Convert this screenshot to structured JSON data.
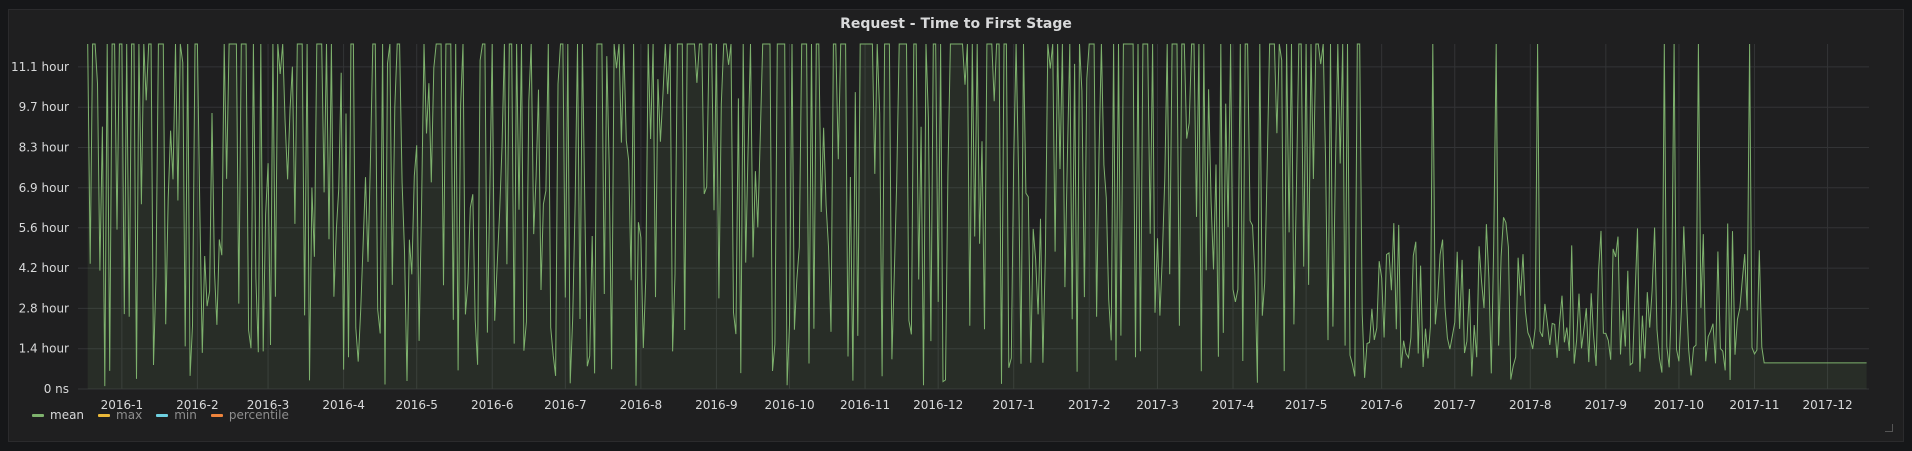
{
  "panel": {
    "title": "Request - Time to First Stage"
  },
  "colors": {
    "background": "#1f1f20",
    "grid": "#333436",
    "tick_text": "#d8d9da",
    "mean": "#7eb26d",
    "max": "#eab839",
    "min": "#6ed0e0",
    "percentile": "#ef843c"
  },
  "chart_data": {
    "type": "line",
    "title": "Request - Time to First Stage",
    "xlabel": "",
    "ylabel": "",
    "y_ticks": [
      "0 ns",
      "1.4 hour",
      "2.8 hour",
      "4.2 hour",
      "5.6 hour",
      "6.9 hour",
      "8.3 hour",
      "9.7 hour",
      "11.1 hour"
    ],
    "y_tick_values_hours": [
      0,
      1.39,
      2.78,
      4.17,
      5.56,
      6.94,
      8.33,
      9.72,
      11.11
    ],
    "ylim_hours": [
      0,
      11.9
    ],
    "x_ticks": [
      "2016-1",
      "2016-2",
      "2016-3",
      "2016-4",
      "2016-5",
      "2016-6",
      "2016-7",
      "2016-8",
      "2016-9",
      "2016-10",
      "2016-11",
      "2016-12",
      "2017-1",
      "2017-2",
      "2017-3",
      "2017-4",
      "2017-5",
      "2017-6",
      "2017-7",
      "2017-8",
      "2017-9",
      "2017-10",
      "2017-11",
      "2017-12"
    ],
    "xlim": [
      "2015-12-14",
      "2017-12-18"
    ],
    "grid": true,
    "legend_position": "bottom-left",
    "series": [
      {
        "name": "mean",
        "description": "dense daily series oscillating between ~0 and the top of the axis (>11.9 hour) from 2015-12 through 2017-05, with lower peaks (mostly 0.5–6 hour) from 2017-06 to 2017-11, then flat at ~0.9 hour from 2017-11-05 to 2017-12-17"
      },
      {
        "name": "max"
      },
      {
        "name": "min"
      },
      {
        "name": "percentile"
      }
    ]
  },
  "legend": {
    "items": [
      {
        "label": "mean",
        "active": true
      },
      {
        "label": "max",
        "active": false
      },
      {
        "label": "min",
        "active": false
      },
      {
        "label": "percentile",
        "active": false
      }
    ]
  }
}
